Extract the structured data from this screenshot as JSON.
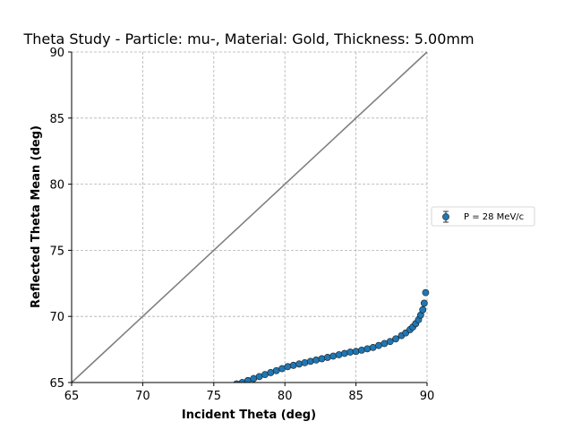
{
  "chart_data": {
    "type": "scatter",
    "title": "Theta Study - Particle: mu-, Material: Gold, Thickness: 5.00mm",
    "xlabel": "Incident Theta (deg)",
    "ylabel": "Reflected Theta Mean (deg)",
    "xlim": [
      65,
      90
    ],
    "ylim": [
      65,
      90
    ],
    "xticks": [
      65,
      70,
      75,
      80,
      85,
      90
    ],
    "yticks": [
      65,
      70,
      75,
      80,
      85,
      90
    ],
    "grid": true,
    "legend_position": "center-right outside",
    "reference_line": {
      "x": [
        65,
        90
      ],
      "y": [
        65,
        90
      ],
      "color": "#808080"
    },
    "series": [
      {
        "name": "P = 28 MeV/c",
        "color": "#1f77b4",
        "marker": "circle-errorbar",
        "x": [
          76.6,
          77.0,
          77.4,
          77.8,
          78.2,
          78.6,
          79.0,
          79.4,
          79.8,
          80.2,
          80.6,
          81.0,
          81.4,
          81.8,
          82.2,
          82.6,
          83.0,
          83.4,
          83.8,
          84.2,
          84.6,
          85.0,
          85.4,
          85.8,
          86.2,
          86.6,
          87.0,
          87.4,
          87.8,
          88.2,
          88.5,
          88.8,
          89.0,
          89.2,
          89.4,
          89.55,
          89.7,
          89.8,
          89.9
        ],
        "y": [
          64.9,
          65.0,
          65.15,
          65.3,
          65.45,
          65.6,
          65.75,
          65.9,
          66.05,
          66.2,
          66.3,
          66.4,
          66.5,
          66.6,
          66.7,
          66.8,
          66.9,
          67.0,
          67.1,
          67.2,
          67.3,
          67.35,
          67.45,
          67.55,
          67.65,
          67.8,
          67.95,
          68.1,
          68.3,
          68.55,
          68.75,
          69.0,
          69.2,
          69.45,
          69.75,
          70.1,
          70.5,
          71.0,
          71.8
        ]
      }
    ]
  }
}
